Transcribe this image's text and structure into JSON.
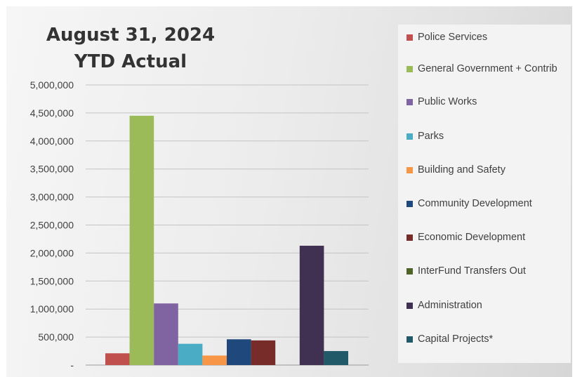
{
  "chart_data": {
    "type": "bar",
    "title": [
      "August 31, 2024",
      "YTD Actual"
    ],
    "xlabel": "",
    "ylabel": "",
    "ylim": [
      0,
      5000000
    ],
    "yticks": [
      0,
      500000,
      1000000,
      1500000,
      2000000,
      2500000,
      3000000,
      3500000,
      4000000,
      4500000,
      5000000
    ],
    "ytick_labels": [
      "-",
      "500,000",
      "1,000,000",
      "1,500,000",
      "2,000,000",
      "2,500,000",
      "3,000,000",
      "3,500,000",
      "4,000,000",
      "4,500,000",
      "5,000,000"
    ],
    "grid": true,
    "legend_position": "right",
    "series": [
      {
        "name": "Police Services",
        "value": 210000,
        "color": "#c0504d"
      },
      {
        "name": "General Government + Contrib",
        "value": 4450000,
        "color": "#9bbb59"
      },
      {
        "name": "Public Works",
        "value": 1100000,
        "color": "#8064a2"
      },
      {
        "name": "Parks",
        "value": 380000,
        "color": "#4bacc6"
      },
      {
        "name": "Building and Safety",
        "value": 170000,
        "color": "#f79646"
      },
      {
        "name": "Community Development",
        "value": 460000,
        "color": "#1f497d"
      },
      {
        "name": "Economic Development",
        "value": 440000,
        "color": "#772c2a"
      },
      {
        "name": "InterFund Transfers Out",
        "value": 0,
        "color": "#4f6228"
      },
      {
        "name": "Administration",
        "value": 2130000,
        "color": "#403152"
      },
      {
        "name": "Capital Projects*",
        "value": 250000,
        "color": "#215968"
      }
    ]
  }
}
